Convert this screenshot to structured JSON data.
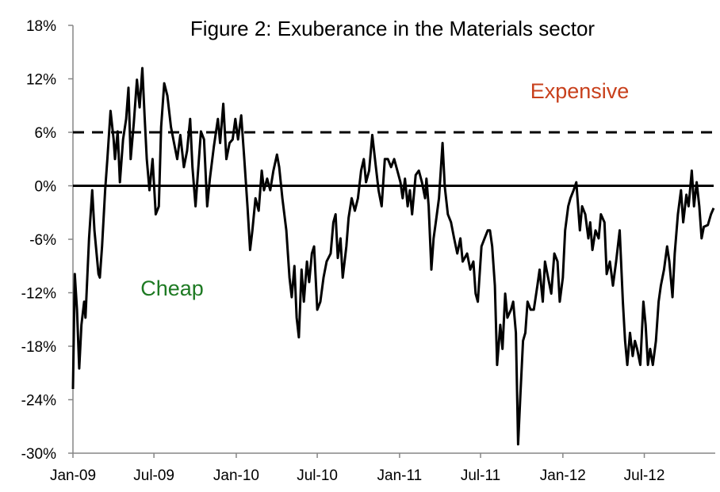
{
  "chart_data": {
    "type": "line",
    "title": "Figure 2: Exuberance in the Materials sector",
    "xlabel": "",
    "ylabel": "",
    "xlim": [
      "2009-01-01",
      "2012-12-03"
    ],
    "ylim": [
      -30,
      18
    ],
    "y_ticks": [
      18,
      12,
      6,
      0,
      -6,
      -12,
      -18,
      -24,
      -30
    ],
    "y_tick_labels": [
      "18%",
      "12%",
      "6%",
      "0%",
      "-6%",
      "-12%",
      "-18%",
      "-24%",
      "-30%"
    ],
    "x_ticks": [
      "2009-01-01",
      "2009-07-01",
      "2010-01-01",
      "2010-07-01",
      "2011-01-01",
      "2011-07-01",
      "2012-01-01",
      "2012-07-01"
    ],
    "x_tick_labels": [
      "Jan-09",
      "Jul-09",
      "Jan-10",
      "Jul-10",
      "Jan-11",
      "Jul-11",
      "Jan-12",
      "Jul-12"
    ],
    "grid": false,
    "reference_lines": [
      {
        "y": 6,
        "style": "dashed"
      },
      {
        "y": 0,
        "style": "solid"
      }
    ],
    "annotations": [
      {
        "text": "Expensive",
        "color": "#c8401c"
      },
      {
        "text": "Cheap",
        "color": "#1e7a23"
      }
    ],
    "line_color": "#000000",
    "series": [
      {
        "points": [
          [
            "2009-01-01",
            -22.8
          ],
          [
            "2009-01-05",
            -9.9
          ],
          [
            "2009-01-10",
            -13.9
          ],
          [
            "2009-01-15",
            -20.5
          ],
          [
            "2009-01-20",
            -15.6
          ],
          [
            "2009-01-26",
            -13.0
          ],
          [
            "2009-01-29",
            -14.8
          ],
          [
            "2009-02-06",
            -5.9
          ],
          [
            "2009-02-13",
            -0.5
          ],
          [
            "2009-02-18",
            -5.0
          ],
          [
            "2009-02-27",
            -9.9
          ],
          [
            "2009-03-02",
            -10.3
          ],
          [
            "2009-03-07",
            -6.8
          ],
          [
            "2009-03-14",
            -0.5
          ],
          [
            "2009-03-19",
            3.0
          ],
          [
            "2009-03-26",
            8.4
          ],
          [
            "2009-04-02",
            5.2
          ],
          [
            "2009-04-05",
            3.0
          ],
          [
            "2009-04-11",
            6.1
          ],
          [
            "2009-04-16",
            0.4
          ],
          [
            "2009-04-23",
            5.2
          ],
          [
            "2009-04-30",
            7.5
          ],
          [
            "2009-05-05",
            11.0
          ],
          [
            "2009-05-10",
            3.0
          ],
          [
            "2009-05-17",
            7.0
          ],
          [
            "2009-05-24",
            11.9
          ],
          [
            "2009-05-30",
            8.8
          ],
          [
            "2009-06-05",
            13.2
          ],
          [
            "2009-06-10",
            7.9
          ],
          [
            "2009-06-15",
            3.0
          ],
          [
            "2009-06-21",
            -0.5
          ],
          [
            "2009-06-28",
            3.0
          ],
          [
            "2009-07-05",
            -3.2
          ],
          [
            "2009-07-12",
            -2.3
          ],
          [
            "2009-07-17",
            6.6
          ],
          [
            "2009-07-24",
            11.5
          ],
          [
            "2009-07-31",
            10.1
          ],
          [
            "2009-08-08",
            6.6
          ],
          [
            "2009-08-15",
            4.8
          ],
          [
            "2009-08-22",
            3.0
          ],
          [
            "2009-08-29",
            5.7
          ],
          [
            "2009-09-06",
            2.1
          ],
          [
            "2009-09-13",
            3.9
          ],
          [
            "2009-09-20",
            7.5
          ],
          [
            "2009-09-25",
            2.1
          ],
          [
            "2009-10-02",
            -2.3
          ],
          [
            "2009-10-07",
            1.2
          ],
          [
            "2009-10-14",
            6.1
          ],
          [
            "2009-10-21",
            5.2
          ],
          [
            "2009-10-28",
            -2.3
          ],
          [
            "2009-11-03",
            0.8
          ],
          [
            "2009-11-12",
            4.4
          ],
          [
            "2009-11-21",
            7.5
          ],
          [
            "2009-11-26",
            4.8
          ],
          [
            "2009-12-03",
            9.2
          ],
          [
            "2009-12-10",
            3.0
          ],
          [
            "2009-12-17",
            4.8
          ],
          [
            "2009-12-24",
            5.2
          ],
          [
            "2009-12-30",
            7.5
          ],
          [
            "2010-01-05",
            5.2
          ],
          [
            "2010-01-12",
            7.9
          ],
          [
            "2010-01-19",
            3.0
          ],
          [
            "2010-01-26",
            -2.3
          ],
          [
            "2010-02-01",
            -7.2
          ],
          [
            "2010-02-06",
            -5.0
          ],
          [
            "2010-02-13",
            -1.4
          ],
          [
            "2010-02-20",
            -2.8
          ],
          [
            "2010-02-27",
            1.7
          ],
          [
            "2010-03-04",
            -0.5
          ],
          [
            "2010-03-11",
            0.8
          ],
          [
            "2010-03-18",
            -0.5
          ],
          [
            "2010-03-25",
            1.7
          ],
          [
            "2010-04-02",
            3.5
          ],
          [
            "2010-04-07",
            2.1
          ],
          [
            "2010-04-14",
            -1.4
          ],
          [
            "2010-04-23",
            -5.0
          ],
          [
            "2010-04-30",
            -10.3
          ],
          [
            "2010-05-05",
            -12.5
          ],
          [
            "2010-05-11",
            -9.0
          ],
          [
            "2010-05-16",
            -14.8
          ],
          [
            "2010-05-21",
            -17.0
          ],
          [
            "2010-05-27",
            -9.4
          ],
          [
            "2010-06-01",
            -13.0
          ],
          [
            "2010-06-08",
            -8.5
          ],
          [
            "2010-06-13",
            -10.8
          ],
          [
            "2010-06-19",
            -7.6
          ],
          [
            "2010-06-24",
            -6.8
          ],
          [
            "2010-07-01",
            -13.9
          ],
          [
            "2010-07-08",
            -13.0
          ],
          [
            "2010-07-15",
            -10.3
          ],
          [
            "2010-07-22",
            -8.5
          ],
          [
            "2010-07-31",
            -7.6
          ],
          [
            "2010-08-06",
            -4.1
          ],
          [
            "2010-08-11",
            -3.2
          ],
          [
            "2010-08-16",
            -8.1
          ],
          [
            "2010-08-22",
            -5.9
          ],
          [
            "2010-08-27",
            -10.3
          ],
          [
            "2010-09-04",
            -6.8
          ],
          [
            "2010-09-09",
            -3.6
          ],
          [
            "2010-09-16",
            -1.4
          ],
          [
            "2010-09-23",
            -2.8
          ],
          [
            "2010-09-30",
            -1.4
          ],
          [
            "2010-10-07",
            1.7
          ],
          [
            "2010-10-13",
            3.0
          ],
          [
            "2010-10-18",
            0.4
          ],
          [
            "2010-10-25",
            1.7
          ],
          [
            "2010-11-01",
            5.7
          ],
          [
            "2010-11-08",
            2.6
          ],
          [
            "2010-11-15",
            -0.5
          ],
          [
            "2010-11-22",
            -2.3
          ],
          [
            "2010-11-29",
            3.0
          ],
          [
            "2010-12-06",
            3.0
          ],
          [
            "2010-12-13",
            2.1
          ],
          [
            "2010-12-20",
            3.0
          ],
          [
            "2010-12-27",
            1.7
          ],
          [
            "2011-01-03",
            0.4
          ],
          [
            "2011-01-08",
            -1.4
          ],
          [
            "2011-01-13",
            0.8
          ],
          [
            "2011-01-19",
            -2.3
          ],
          [
            "2011-01-24",
            -0.5
          ],
          [
            "2011-01-29",
            -3.2
          ],
          [
            "2011-02-06",
            1.2
          ],
          [
            "2011-02-13",
            1.7
          ],
          [
            "2011-02-20",
            0.4
          ],
          [
            "2011-02-27",
            -1.4
          ],
          [
            "2011-03-02",
            0.8
          ],
          [
            "2011-03-07",
            -2.3
          ],
          [
            "2011-03-13",
            -9.4
          ],
          [
            "2011-03-18",
            -5.9
          ],
          [
            "2011-03-23",
            -4.1
          ],
          [
            "2011-03-30",
            -1.4
          ],
          [
            "2011-04-07",
            4.8
          ],
          [
            "2011-04-12",
            -0.1
          ],
          [
            "2011-04-19",
            -3.2
          ],
          [
            "2011-04-26",
            -4.1
          ],
          [
            "2011-05-03",
            -5.9
          ],
          [
            "2011-05-10",
            -7.6
          ],
          [
            "2011-05-17",
            -5.9
          ],
          [
            "2011-05-22",
            -8.5
          ],
          [
            "2011-06-01",
            -7.6
          ],
          [
            "2011-06-08",
            -9.4
          ],
          [
            "2011-06-15",
            -8.5
          ],
          [
            "2011-06-20",
            -12.1
          ],
          [
            "2011-06-25",
            -13.0
          ],
          [
            "2011-07-03",
            -6.8
          ],
          [
            "2011-07-10",
            -5.9
          ],
          [
            "2011-07-17",
            -5.0
          ],
          [
            "2011-07-22",
            -5.0
          ],
          [
            "2011-07-27",
            -6.8
          ],
          [
            "2011-08-02",
            -11.2
          ],
          [
            "2011-08-07",
            -20.1
          ],
          [
            "2011-08-14",
            -15.6
          ],
          [
            "2011-08-19",
            -18.3
          ],
          [
            "2011-08-25",
            -12.1
          ],
          [
            "2011-08-30",
            -14.8
          ],
          [
            "2011-09-07",
            -13.9
          ],
          [
            "2011-09-12",
            -13.0
          ],
          [
            "2011-09-18",
            -16.5
          ],
          [
            "2011-09-23",
            -29.0
          ],
          [
            "2011-09-28",
            -23.6
          ],
          [
            "2011-10-04",
            -17.4
          ],
          [
            "2011-10-09",
            -16.5
          ],
          [
            "2011-10-14",
            -13.0
          ],
          [
            "2011-10-21",
            -13.9
          ],
          [
            "2011-10-28",
            -13.9
          ],
          [
            "2011-11-05",
            -11.2
          ],
          [
            "2011-11-10",
            -9.4
          ],
          [
            "2011-11-17",
            -13.0
          ],
          [
            "2011-11-22",
            -8.5
          ],
          [
            "2011-11-29",
            -10.3
          ],
          [
            "2011-12-06",
            -12.1
          ],
          [
            "2011-12-13",
            -7.6
          ],
          [
            "2011-12-20",
            -8.5
          ],
          [
            "2011-12-25",
            -13.0
          ],
          [
            "2012-01-01",
            -10.3
          ],
          [
            "2012-01-06",
            -5.0
          ],
          [
            "2012-01-13",
            -2.3
          ],
          [
            "2012-01-18",
            -1.4
          ],
          [
            "2012-01-25",
            -0.5
          ],
          [
            "2012-01-31",
            0.4
          ],
          [
            "2012-02-08",
            -5.0
          ],
          [
            "2012-02-13",
            -2.3
          ],
          [
            "2012-02-20",
            -3.2
          ],
          [
            "2012-02-27",
            -5.9
          ],
          [
            "2012-03-02",
            -4.1
          ],
          [
            "2012-03-07",
            -7.2
          ],
          [
            "2012-03-14",
            -5.0
          ],
          [
            "2012-03-21",
            -5.9
          ],
          [
            "2012-03-26",
            -3.2
          ],
          [
            "2012-04-03",
            -4.1
          ],
          [
            "2012-04-08",
            -9.9
          ],
          [
            "2012-04-15",
            -8.5
          ],
          [
            "2012-04-22",
            -11.2
          ],
          [
            "2012-04-29",
            -8.5
          ],
          [
            "2012-05-07",
            -5.0
          ],
          [
            "2012-05-14",
            -13.0
          ],
          [
            "2012-05-19",
            -17.4
          ],
          [
            "2012-05-24",
            -20.1
          ],
          [
            "2012-05-30",
            -16.5
          ],
          [
            "2012-06-05",
            -19.1
          ],
          [
            "2012-06-10",
            -17.4
          ],
          [
            "2012-06-15",
            -18.3
          ],
          [
            "2012-06-22",
            -20.1
          ],
          [
            "2012-06-29",
            -13.0
          ],
          [
            "2012-07-04",
            -15.6
          ],
          [
            "2012-07-09",
            -20.1
          ],
          [
            "2012-07-14",
            -18.3
          ],
          [
            "2012-07-20",
            -20.1
          ],
          [
            "2012-07-27",
            -17.4
          ],
          [
            "2012-08-02",
            -13.0
          ],
          [
            "2012-08-07",
            -11.2
          ],
          [
            "2012-08-14",
            -9.4
          ],
          [
            "2012-08-21",
            -6.8
          ],
          [
            "2012-08-26",
            -8.5
          ],
          [
            "2012-09-02",
            -12.5
          ],
          [
            "2012-09-07",
            -7.6
          ],
          [
            "2012-09-14",
            -3.2
          ],
          [
            "2012-09-21",
            -0.5
          ],
          [
            "2012-09-26",
            -4.1
          ],
          [
            "2012-10-03",
            -1.0
          ],
          [
            "2012-10-08",
            -2.3
          ],
          [
            "2012-10-15",
            1.7
          ],
          [
            "2012-10-20",
            -2.3
          ],
          [
            "2012-10-26",
            0.4
          ],
          [
            "2012-11-01",
            -2.3
          ],
          [
            "2012-11-06",
            -5.9
          ],
          [
            "2012-11-11",
            -4.6
          ],
          [
            "2012-11-20",
            -4.4
          ],
          [
            "2012-11-27",
            -3.2
          ],
          [
            "2012-12-03",
            -2.5
          ]
        ]
      }
    ]
  }
}
